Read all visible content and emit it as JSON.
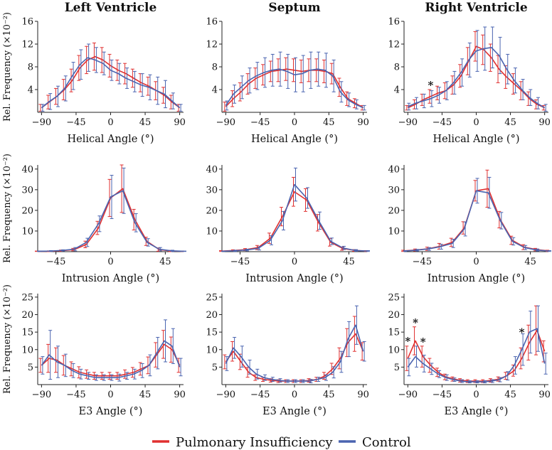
{
  "colors": {
    "pi": "#e03030",
    "control": "#4a64b0"
  },
  "legend": {
    "pi_label": "Pulmonary Insufficiency",
    "control_label": "Control"
  },
  "chart_data": [
    {
      "type": "line",
      "title": "Left Ventricle",
      "xlabel": "Helical Angle (°)",
      "ylabel": "Rel. Frequency (×10⁻²)",
      "xlim": [
        -95,
        95
      ],
      "ylim": [
        0,
        16
      ],
      "xticks": [
        -90,
        -45,
        0,
        45,
        90
      ],
      "yticks": [
        4,
        8,
        12,
        16
      ],
      "x": [
        -90,
        -80,
        -70,
        -60,
        -50,
        -40,
        -30,
        -20,
        -10,
        0,
        10,
        20,
        30,
        40,
        50,
        60,
        70,
        80,
        90
      ],
      "series": [
        {
          "name": "Pulmonary Insufficiency",
          "values": [
            0.8,
            1.8,
            2.8,
            4.0,
            5.6,
            7.8,
            9.2,
            9.8,
            9.2,
            8.2,
            7.4,
            6.8,
            6.0,
            5.2,
            4.6,
            3.8,
            3.0,
            1.8,
            0.8
          ],
          "errors": [
            0.6,
            1.2,
            1.4,
            1.8,
            2.0,
            2.2,
            2.4,
            2.4,
            2.2,
            2.0,
            1.8,
            1.8,
            1.6,
            1.6,
            1.6,
            1.6,
            1.4,
            1.2,
            0.6
          ]
        },
        {
          "name": "Control",
          "values": [
            0.8,
            1.9,
            2.8,
            4.2,
            6.4,
            8.4,
            9.6,
            9.2,
            8.6,
            7.4,
            6.8,
            6.0,
            5.4,
            4.8,
            4.4,
            3.8,
            3.2,
            2.0,
            0.8
          ],
          "errors": [
            0.6,
            1.4,
            1.8,
            2.2,
            2.4,
            2.6,
            2.4,
            2.2,
            2.0,
            1.8,
            1.8,
            1.8,
            1.8,
            2.0,
            2.2,
            2.4,
            2.4,
            1.4,
            0.6
          ]
        }
      ]
    },
    {
      "type": "line",
      "title": "Septum",
      "xlabel": "Helical Angle (°)",
      "ylabel": "",
      "xlim": [
        -95,
        95
      ],
      "ylim": [
        0,
        16
      ],
      "xticks": [
        -90,
        -45,
        0,
        45,
        90
      ],
      "yticks": [
        4,
        8,
        12,
        16
      ],
      "x": [
        -90,
        -80,
        -70,
        -60,
        -50,
        -40,
        -30,
        -20,
        -10,
        0,
        10,
        20,
        30,
        40,
        50,
        60,
        70,
        80,
        90
      ],
      "series": [
        {
          "name": "Pulmonary Insufficiency",
          "values": [
            1.0,
            2.4,
            3.6,
            5.0,
            6.0,
            6.6,
            7.2,
            7.4,
            7.6,
            7.4,
            7.2,
            7.4,
            7.4,
            7.2,
            6.8,
            4.4,
            2.4,
            1.6,
            0.8
          ],
          "errors": [
            0.8,
            1.4,
            1.6,
            1.8,
            1.8,
            1.8,
            1.8,
            2.0,
            2.0,
            2.0,
            2.0,
            2.0,
            2.0,
            2.0,
            1.8,
            1.6,
            1.2,
            0.8,
            0.4
          ]
        },
        {
          "name": "Control",
          "values": [
            1.2,
            3.2,
            4.4,
            5.6,
            6.4,
            7.0,
            7.4,
            7.6,
            7.2,
            6.6,
            6.8,
            7.4,
            7.6,
            7.4,
            6.4,
            3.6,
            2.2,
            1.4,
            0.8
          ],
          "errors": [
            0.8,
            1.6,
            2.0,
            2.2,
            2.4,
            2.6,
            2.8,
            3.0,
            3.0,
            3.0,
            3.2,
            3.2,
            3.0,
            3.0,
            2.8,
            1.8,
            1.2,
            0.8,
            0.4
          ]
        }
      ]
    },
    {
      "type": "line",
      "title": "Right Ventricle",
      "xlabel": "Helical Angle (°)",
      "ylabel": "",
      "xlim": [
        -95,
        95
      ],
      "ylim": [
        0,
        16
      ],
      "xticks": [
        -90,
        -45,
        0,
        45,
        90
      ],
      "yticks": [
        4,
        8,
        12,
        16
      ],
      "x": [
        -90,
        -80,
        -70,
        -60,
        -50,
        -40,
        -30,
        -20,
        -10,
        0,
        10,
        20,
        30,
        40,
        50,
        60,
        70,
        80,
        90
      ],
      "annotations": [
        {
          "x": -60,
          "y": 4.6,
          "text": "*"
        }
      ],
      "series": [
        {
          "name": "Pulmonary Insufficiency",
          "values": [
            0.8,
            1.4,
            2.2,
            2.8,
            3.4,
            3.8,
            4.8,
            6.4,
            9.0,
            11.6,
            11.0,
            9.6,
            7.6,
            6.2,
            5.0,
            3.8,
            2.4,
            1.4,
            0.8
          ],
          "errors": [
            0.4,
            0.8,
            1.0,
            1.2,
            1.2,
            1.4,
            1.6,
            2.0,
            2.4,
            2.6,
            2.6,
            2.4,
            2.4,
            2.0,
            1.8,
            1.6,
            1.2,
            0.8,
            0.4
          ]
        },
        {
          "name": "Control",
          "values": [
            1.0,
            1.6,
            2.0,
            2.4,
            3.0,
            3.8,
            5.2,
            7.0,
            9.2,
            10.8,
            11.2,
            11.4,
            10.0,
            7.6,
            5.6,
            4.0,
            2.6,
            1.6,
            0.8
          ],
          "errors": [
            0.6,
            1.0,
            1.2,
            1.4,
            1.4,
            1.6,
            2.0,
            2.4,
            3.0,
            3.6,
            3.8,
            3.6,
            3.2,
            2.6,
            2.2,
            1.8,
            1.4,
            1.0,
            0.6
          ]
        }
      ]
    },
    {
      "type": "line",
      "title": "",
      "xlabel": "Intrusion Angle (°)",
      "ylabel": "Rel. Frequency (×10⁻²)",
      "xlim": [
        -60,
        60
      ],
      "ylim": [
        0,
        42
      ],
      "xticks": [
        -45,
        0,
        45
      ],
      "yticks": [
        10,
        20,
        30,
        40
      ],
      "x": [
        -60,
        -50,
        -40,
        -30,
        -20,
        -10,
        0,
        10,
        20,
        30,
        40,
        50,
        60
      ],
      "series": [
        {
          "name": "Pulmonary Insufficiency",
          "values": [
            0.2,
            0.2,
            0.5,
            1.0,
            3.5,
            11.5,
            26.0,
            30.5,
            15.5,
            5.0,
            1.0,
            0.3,
            0.2
          ],
          "errors": [
            0.1,
            0.2,
            0.3,
            0.6,
            1.6,
            3.2,
            9.0,
            11.5,
            5.0,
            2.0,
            0.8,
            0.3,
            0.1
          ]
        },
        {
          "name": "Control",
          "values": [
            0.2,
            0.3,
            0.6,
            1.2,
            4.5,
            13.5,
            26.5,
            29.5,
            14.0,
            4.5,
            1.2,
            0.4,
            0.2
          ],
          "errors": [
            0.1,
            0.2,
            0.3,
            0.8,
            2.0,
            3.8,
            10.5,
            11.0,
            4.4,
            1.8,
            0.8,
            0.3,
            0.1
          ]
        }
      ]
    },
    {
      "type": "line",
      "title": "",
      "xlabel": "Intrusion Angle (°)",
      "ylabel": "",
      "xlim": [
        -60,
        60
      ],
      "ylim": [
        0,
        42
      ],
      "xticks": [
        -45,
        0,
        45
      ],
      "yticks": [
        10,
        20,
        30,
        40
      ],
      "x": [
        -60,
        -50,
        -40,
        -30,
        -20,
        -10,
        0,
        10,
        20,
        30,
        40,
        50,
        60
      ],
      "series": [
        {
          "name": "Pulmonary Insufficiency",
          "values": [
            0.3,
            0.6,
            1.0,
            2.0,
            6.5,
            17.0,
            29.0,
            25.0,
            14.0,
            4.5,
            1.5,
            0.6,
            0.3
          ],
          "errors": [
            0.2,
            0.3,
            0.5,
            1.0,
            2.5,
            4.5,
            7.0,
            5.5,
            4.0,
            1.8,
            0.8,
            0.4,
            0.2
          ]
        },
        {
          "name": "Control",
          "values": [
            0.2,
            0.4,
            0.8,
            1.6,
            5.5,
            15.0,
            32.5,
            26.0,
            15.0,
            5.0,
            1.8,
            0.6,
            0.3
          ],
          "errors": [
            0.1,
            0.3,
            0.4,
            0.8,
            2.2,
            4.5,
            8.0,
            5.0,
            4.2,
            1.6,
            0.8,
            0.4,
            0.2
          ]
        }
      ]
    },
    {
      "type": "line",
      "title": "",
      "xlabel": "Intrusion Angle (°)",
      "ylabel": "",
      "xlim": [
        -60,
        60
      ],
      "ylim": [
        0,
        42
      ],
      "xticks": [
        -45,
        0,
        45
      ],
      "yticks": [
        10,
        20,
        30,
        40
      ],
      "x": [
        -60,
        -50,
        -40,
        -30,
        -20,
        -10,
        0,
        10,
        20,
        30,
        40,
        50,
        60
      ],
      "series": [
        {
          "name": "Pulmonary Insufficiency",
          "values": [
            0.4,
            0.8,
            1.4,
            2.6,
            4.5,
            11.5,
            29.5,
            30.5,
            15.5,
            5.5,
            2.2,
            1.0,
            0.4
          ],
          "errors": [
            0.3,
            0.5,
            0.8,
            1.4,
            2.0,
            3.0,
            5.0,
            9.0,
            4.0,
            2.0,
            1.2,
            0.6,
            0.3
          ]
        },
        {
          "name": "Control",
          "values": [
            0.3,
            0.7,
            1.3,
            2.4,
            4.0,
            11.0,
            29.5,
            28.5,
            15.0,
            5.0,
            2.0,
            0.8,
            0.3
          ],
          "errors": [
            0.2,
            0.4,
            0.7,
            1.2,
            2.0,
            3.4,
            6.0,
            7.5,
            4.0,
            1.8,
            1.0,
            0.5,
            0.2
          ]
        }
      ]
    },
    {
      "type": "line",
      "title": "",
      "xlabel": "E3 Angle (°)",
      "ylabel": "Rel. Frequency (×10⁻²)",
      "xlim": [
        -95,
        95
      ],
      "ylim": [
        0,
        26
      ],
      "xticks": [
        -90,
        -45,
        0,
        45,
        90
      ],
      "yticks": [
        5,
        10,
        15,
        20,
        25
      ],
      "x": [
        -90,
        -80,
        -70,
        -60,
        -50,
        -40,
        -30,
        -20,
        -10,
        0,
        10,
        20,
        30,
        40,
        50,
        60,
        70,
        80,
        90
      ],
      "series": [
        {
          "name": "Pulmonary Insufficiency",
          "values": [
            5.5,
            7.5,
            7.0,
            5.5,
            4.5,
            3.5,
            3.0,
            2.5,
            2.5,
            2.5,
            2.5,
            3.0,
            3.5,
            4.5,
            5.5,
            8.5,
            11.5,
            10.0,
            5.5
          ],
          "errors": [
            2.0,
            4.0,
            3.5,
            2.8,
            2.0,
            1.6,
            1.2,
            1.0,
            1.0,
            1.0,
            1.0,
            1.2,
            1.4,
            1.8,
            2.4,
            3.5,
            4.0,
            3.6,
            2.0
          ]
        },
        {
          "name": "Control",
          "values": [
            5.5,
            8.5,
            6.5,
            5.5,
            4.0,
            3.0,
            2.5,
            2.0,
            2.0,
            2.0,
            2.0,
            2.5,
            3.0,
            4.0,
            5.5,
            9.0,
            12.5,
            11.0,
            5.0
          ],
          "errors": [
            2.5,
            7.0,
            4.5,
            3.2,
            2.0,
            1.4,
            1.0,
            0.8,
            0.8,
            0.8,
            1.0,
            1.0,
            1.4,
            2.0,
            3.0,
            4.5,
            6.0,
            5.0,
            2.5
          ]
        }
      ]
    },
    {
      "type": "line",
      "title": "",
      "xlabel": "E3 Angle (°)",
      "ylabel": "",
      "xlim": [
        -95,
        95
      ],
      "ylim": [
        0,
        26
      ],
      "xticks": [
        -90,
        -45,
        0,
        45,
        90
      ],
      "yticks": [
        5,
        10,
        15,
        20,
        25
      ],
      "x": [
        -90,
        -80,
        -70,
        -60,
        -50,
        -40,
        -30,
        -20,
        -10,
        0,
        10,
        20,
        30,
        40,
        50,
        60,
        70,
        80,
        90
      ],
      "series": [
        {
          "name": "Pulmonary Insufficiency",
          "values": [
            6.5,
            9.5,
            6.5,
            3.5,
            2.0,
            1.5,
            1.2,
            1.0,
            1.0,
            1.0,
            1.0,
            1.2,
            1.5,
            2.5,
            4.5,
            7.5,
            12.0,
            14.5,
            9.5
          ],
          "errors": [
            2.0,
            2.8,
            2.2,
            1.4,
            0.8,
            0.6,
            0.5,
            0.4,
            0.4,
            0.4,
            0.4,
            0.5,
            0.6,
            1.0,
            1.6,
            3.0,
            4.0,
            5.0,
            2.5
          ]
        },
        {
          "name": "Control",
          "values": [
            6.0,
            10.5,
            8.0,
            5.0,
            3.0,
            2.0,
            1.5,
            1.2,
            1.0,
            1.0,
            1.0,
            1.0,
            1.5,
            2.0,
            3.5,
            6.5,
            13.0,
            17.0,
            9.5
          ],
          "errors": [
            2.0,
            3.0,
            3.0,
            2.0,
            1.4,
            0.8,
            0.6,
            0.5,
            0.4,
            0.4,
            0.4,
            0.5,
            0.6,
            0.8,
            1.6,
            3.0,
            5.0,
            5.5,
            2.8
          ]
        }
      ]
    },
    {
      "type": "line",
      "title": "",
      "xlabel": "E3 Angle (°)",
      "ylabel": "",
      "xlim": [
        -95,
        95
      ],
      "ylim": [
        0,
        26
      ],
      "xticks": [
        -90,
        -45,
        0,
        45,
        90
      ],
      "yticks": [
        5,
        10,
        15,
        20,
        25
      ],
      "x": [
        -90,
        -80,
        -70,
        -60,
        -50,
        -40,
        -30,
        -20,
        -10,
        0,
        10,
        20,
        30,
        40,
        50,
        60,
        70,
        80,
        90
      ],
      "annotations": [
        {
          "x": -90,
          "y": 12.2,
          "text": "*"
        },
        {
          "x": -80,
          "y": 17.5,
          "text": "*"
        },
        {
          "x": -70,
          "y": 12.0,
          "text": "*"
        },
        {
          "x": 60,
          "y": 14.7,
          "text": "*"
        }
      ],
      "series": [
        {
          "name": "Pulmonary Insufficiency",
          "values": [
            7.5,
            12.5,
            8.0,
            5.5,
            3.5,
            2.2,
            1.6,
            1.2,
            1.0,
            1.0,
            1.0,
            1.2,
            1.6,
            2.5,
            4.0,
            7.5,
            12.0,
            15.5,
            9.5
          ],
          "errors": [
            3.5,
            4.0,
            3.0,
            2.0,
            1.2,
            0.8,
            0.6,
            0.5,
            0.4,
            0.4,
            0.4,
            0.5,
            0.6,
            1.0,
            1.6,
            3.0,
            5.0,
            7.0,
            3.0
          ]
        },
        {
          "name": "Control",
          "values": [
            5.0,
            8.0,
            6.0,
            4.5,
            3.0,
            2.0,
            1.4,
            1.0,
            0.8,
            0.8,
            0.8,
            1.0,
            1.4,
            2.5,
            5.5,
            10.0,
            15.0,
            16.0,
            6.0
          ],
          "errors": [
            2.5,
            3.0,
            2.4,
            1.6,
            1.0,
            0.8,
            0.5,
            0.4,
            0.3,
            0.3,
            0.3,
            0.4,
            0.6,
            1.2,
            2.5,
            4.5,
            6.0,
            6.5,
            3.0
          ]
        }
      ]
    }
  ]
}
